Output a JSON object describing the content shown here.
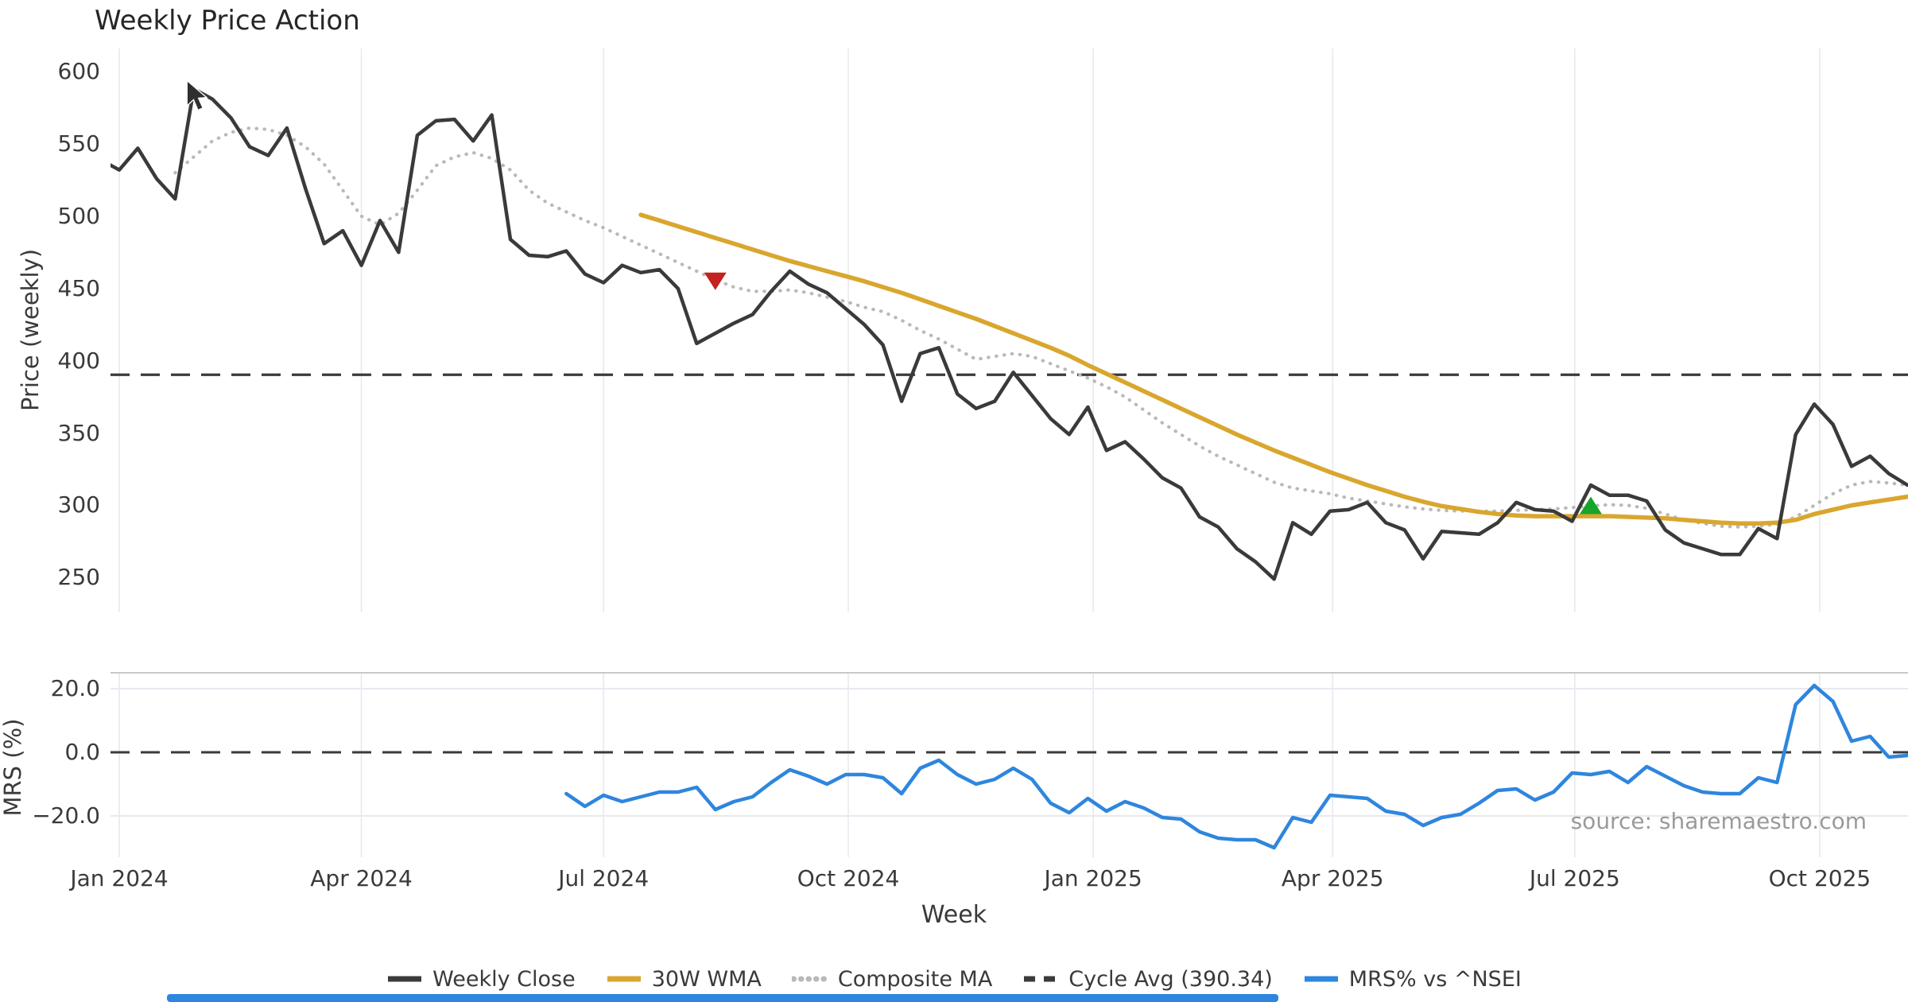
{
  "title": "Weekly Price Action",
  "source_note": "source: sharemaestro.com",
  "colors": {
    "close": "#3a3a3a",
    "wma": "#d9a62e",
    "composite": "#b9b9b9",
    "cycle_avg": "#3a3a3a",
    "mrs": "#2e86de",
    "sell_marker": "#c62020",
    "buy_marker": "#18a428",
    "gridline": "#e8e8ef",
    "panel_spine": "#c9c9c9",
    "blue_bar": "#2e86de"
  },
  "chart_data": {
    "type": "line",
    "title": "Weekly Price Action",
    "x_axis": {
      "label": "Week",
      "week0_date": "2024-01-01",
      "tick_labels": [
        "Jan 2024",
        "Apr 2024",
        "Jul 2024",
        "Oct 2024",
        "Jan 2025",
        "Apr 2025",
        "Jul 2025",
        "Oct 2025"
      ],
      "tick_weeks": [
        0,
        13,
        26,
        39.14,
        52.29,
        65.14,
        78.14,
        91.29
      ]
    },
    "panels": [
      {
        "id": "price",
        "ylabel": "Price (weekly)",
        "ymin": 226,
        "ymax": 616,
        "tick_values": [
          600,
          550,
          500,
          450,
          400,
          350,
          300,
          250
        ],
        "tick_labels": [
          "600",
          "550",
          "500",
          "450",
          "400",
          "350",
          "300",
          "250"
        ]
      },
      {
        "id": "mrs",
        "ylabel": "MRS (%)",
        "ymin": -33,
        "ymax": 25,
        "tick_values": [
          20,
          0,
          -20
        ],
        "tick_labels": [
          "20.0",
          "0.0",
          "−20.0"
        ],
        "gridline_values": [
          20,
          -20
        ]
      }
    ],
    "series": [
      {
        "name": "Weekly Close",
        "panel": "price",
        "style": "solid",
        "color": "#3a3a3a",
        "width": 4.5,
        "start_week": -1,
        "values": [
          539,
          532,
          547,
          526,
          512,
          588,
          581,
          568,
          548,
          542,
          561,
          519,
          481,
          490,
          466,
          497,
          475,
          556,
          566,
          567,
          552,
          570,
          484,
          473,
          472,
          476,
          460,
          454,
          466,
          461,
          463,
          450,
          412,
          419,
          426,
          432,
          448,
          462,
          453,
          447,
          436,
          425,
          411,
          372,
          405,
          409,
          377,
          367,
          372,
          392,
          376,
          360,
          349,
          368,
          338,
          344,
          332,
          319,
          312,
          292,
          285,
          270,
          261,
          249,
          288,
          280,
          296,
          297,
          302,
          288,
          283,
          263,
          282,
          281,
          280,
          288,
          302,
          297,
          296,
          289,
          314,
          307,
          307,
          303,
          283,
          274,
          270,
          266,
          266,
          284,
          277,
          349,
          370,
          356,
          327,
          334,
          322,
          314
        ]
      },
      {
        "name": "30W WMA",
        "panel": "price",
        "style": "solid",
        "color": "#d9a62e",
        "width": 5.5,
        "start_week": 28,
        "values": [
          501,
          497,
          493,
          489,
          485,
          481,
          477,
          473,
          469,
          465.5,
          462,
          458.5,
          455,
          451,
          447,
          442.5,
          438,
          433.5,
          429,
          424,
          419,
          414,
          409,
          403.5,
          397,
          391,
          385,
          379,
          373,
          367,
          361,
          355,
          349,
          343.5,
          338,
          333,
          328,
          323,
          318.5,
          314,
          310,
          306,
          302.5,
          299.5,
          297.5,
          295.5,
          294,
          293,
          292.5,
          292.5,
          292.5,
          292.5,
          292.5,
          292,
          291.5,
          291,
          290,
          289,
          288,
          287.5,
          287.5,
          288,
          290,
          294,
          297,
          300,
          302,
          304,
          306
        ]
      },
      {
        "name": "Composite MA",
        "panel": "price",
        "style": "dotted",
        "color": "#b9b9b9",
        "width": 4.2,
        "start_week": 3,
        "values": [
          530,
          541,
          552,
          558,
          561,
          560,
          556,
          548,
          536,
          518,
          500,
          494,
          502,
          518,
          535,
          541,
          544,
          540,
          532,
          518,
          509,
          503,
          497,
          492,
          486,
          480,
          474,
          468,
          462,
          456,
          451,
          448,
          448,
          449,
          447,
          444,
          441,
          437,
          434,
          428,
          421,
          415,
          408,
          401,
          403,
          405,
          403,
          398,
          393,
          388,
          382,
          375,
          366,
          357,
          349,
          341,
          334,
          328,
          322,
          316,
          312,
          310,
          308,
          305,
          303,
          301,
          299,
          297.5,
          296.5,
          296,
          296,
          296,
          296.5,
          297,
          297.5,
          298.5,
          299.5,
          300.5,
          300,
          298,
          294,
          290,
          287.5,
          285.5,
          285,
          285.5,
          287,
          292,
          300,
          308,
          314,
          316.5,
          315.5,
          314
        ]
      },
      {
        "name": "MRS% vs ^NSEI",
        "panel": "mrs",
        "style": "solid",
        "color": "#2e86de",
        "width": 4.5,
        "start_week": 24,
        "values": [
          -13,
          -17,
          -13.5,
          -15.5,
          -14,
          -12.5,
          -12.5,
          -11,
          -18,
          -15.5,
          -14,
          -9.5,
          -5.5,
          -7.5,
          -10,
          -7,
          -7,
          -8,
          -13,
          -5,
          -2.5,
          -7,
          -10,
          -8.5,
          -5,
          -8.5,
          -16,
          -19,
          -14.5,
          -18.5,
          -15.5,
          -17.5,
          -20.5,
          -21,
          -25,
          -27,
          -27.5,
          -27.5,
          -30,
          -20.5,
          -22,
          -13.5,
          -14,
          -14.5,
          -18.5,
          -19.5,
          -23,
          -20.5,
          -19.5,
          -16,
          -12,
          -11.5,
          -15,
          -12.5,
          -6.5,
          -7,
          -6,
          -9.5,
          -4.5,
          -7.5,
          -10.5,
          -12.5,
          -13,
          -13,
          -8,
          -9.5,
          15,
          21,
          16,
          3.5,
          5,
          -1.5,
          -1
        ]
      }
    ],
    "reference_lines": [
      {
        "panel": "price",
        "label": "Cycle Avg (390.34)",
        "value": 390.34,
        "style": "dashed",
        "color": "#3a3a3a",
        "width": 3.2
      },
      {
        "panel": "mrs",
        "label": "Zero line",
        "value": 0,
        "style": "dashed",
        "color": "#3a3a3a",
        "width": 3
      }
    ],
    "annotations": [
      {
        "id": "sell-signal",
        "shape": "triangle-down",
        "color": "#c62020",
        "panel": "price",
        "week": 32,
        "date": "2024-08-12",
        "value": 455
      },
      {
        "id": "buy-signal",
        "shape": "triangle-up",
        "color": "#18a428",
        "panel": "price",
        "week": 79,
        "date": "2025-07-07",
        "value": 300
      }
    ],
    "legend": [
      {
        "label": "Weekly Close",
        "swatch": "solid",
        "color": "#3a3a3a"
      },
      {
        "label": "30W WMA",
        "swatch": "solid",
        "color": "#d9a62e"
      },
      {
        "label": "Composite MA",
        "swatch": "dotted",
        "color": "#b9b9b9"
      },
      {
        "label": "Cycle Avg (390.34)",
        "swatch": "dashed",
        "color": "#3a3a3a"
      },
      {
        "label": "MRS% vs ^NSEI",
        "swatch": "solid",
        "color": "#2e86de"
      }
    ],
    "grid": "vertical-light",
    "legend_position": "bottom-center"
  }
}
